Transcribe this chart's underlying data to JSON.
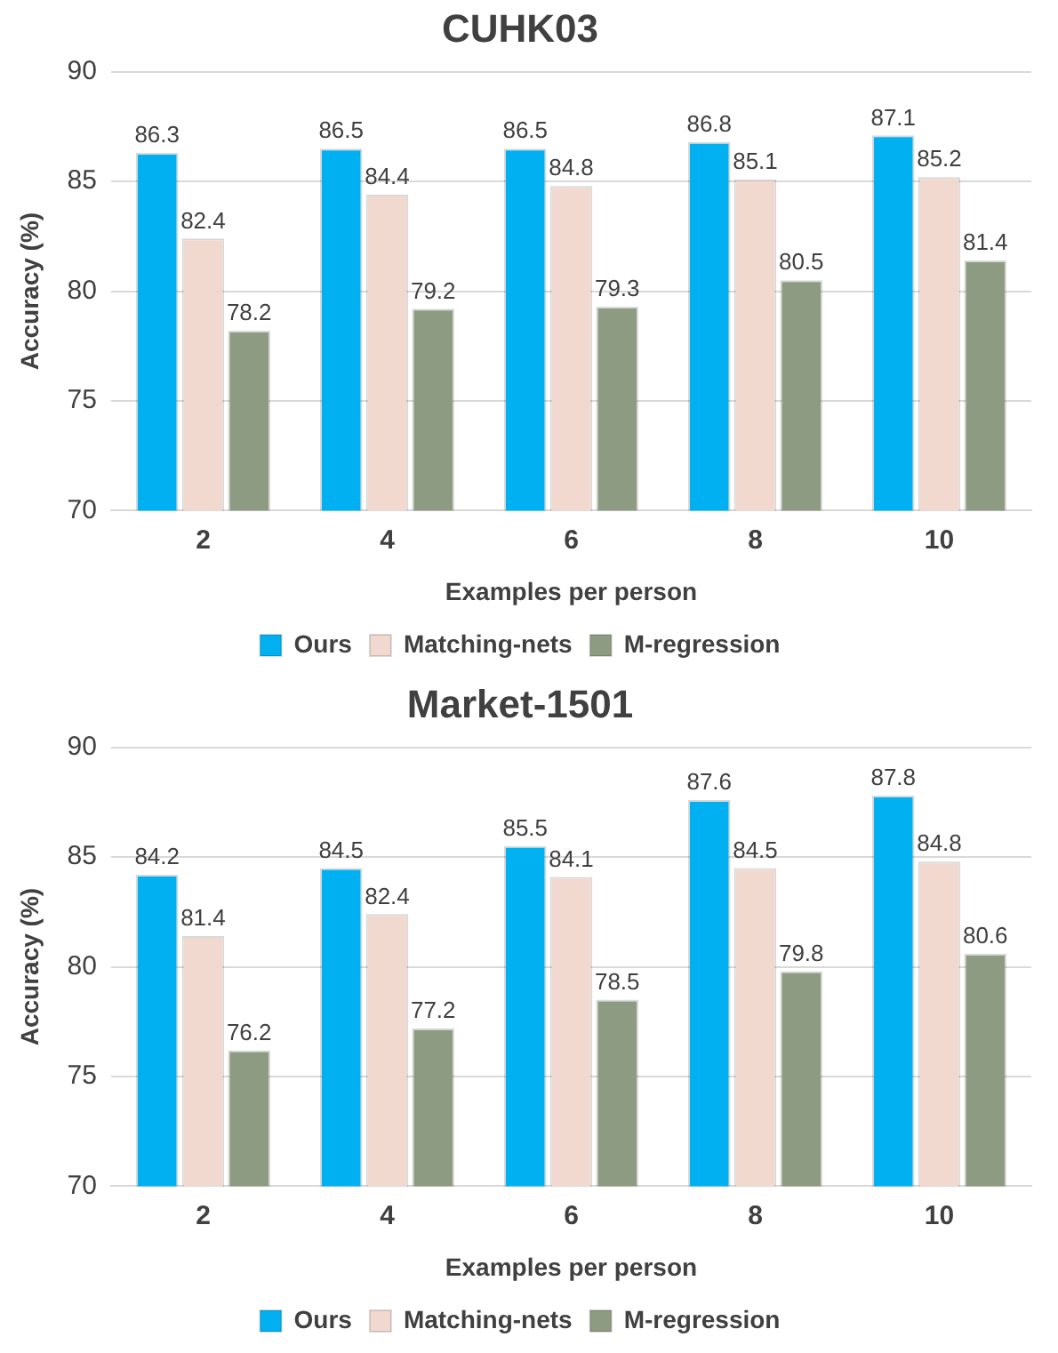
{
  "chart_data": [
    {
      "type": "bar",
      "title": "CUHK03",
      "xlabel": "Examples per person",
      "ylabel": "Accuracy (%)",
      "categories": [
        "2",
        "4",
        "6",
        "8",
        "10"
      ],
      "series": [
        {
          "name": "Ours",
          "color": "#00b0f0",
          "values": [
            86.3,
            86.5,
            86.5,
            86.8,
            87.1
          ]
        },
        {
          "name": "Matching-nets",
          "color": "#f2d9d0",
          "values": [
            82.4,
            84.4,
            84.8,
            85.1,
            85.2
          ]
        },
        {
          "name": "M-regression",
          "color": "#8d9b82",
          "values": [
            78.2,
            79.2,
            79.3,
            80.5,
            81.4
          ]
        }
      ],
      "ylim": [
        70,
        90
      ],
      "yticks": [
        70,
        75,
        80,
        85,
        90
      ],
      "grid": "y",
      "legend": "bottom",
      "data_labels": true
    },
    {
      "type": "bar",
      "title": "Market-1501",
      "xlabel": "Examples per person",
      "ylabel": "Accuracy (%)",
      "categories": [
        "2",
        "4",
        "6",
        "8",
        "10"
      ],
      "series": [
        {
          "name": "Ours",
          "color": "#00b0f0",
          "values": [
            84.2,
            84.5,
            85.5,
            87.6,
            87.8
          ]
        },
        {
          "name": "Matching-nets",
          "color": "#f2d9d0",
          "values": [
            81.4,
            82.4,
            84.1,
            84.5,
            84.8
          ]
        },
        {
          "name": "M-regression",
          "color": "#8d9b82",
          "values": [
            76.2,
            77.2,
            78.5,
            79.8,
            80.6
          ]
        }
      ],
      "ylim": [
        70,
        90
      ],
      "yticks": [
        70,
        75,
        80,
        85,
        90
      ],
      "grid": "y",
      "legend": "bottom",
      "data_labels": true
    }
  ]
}
